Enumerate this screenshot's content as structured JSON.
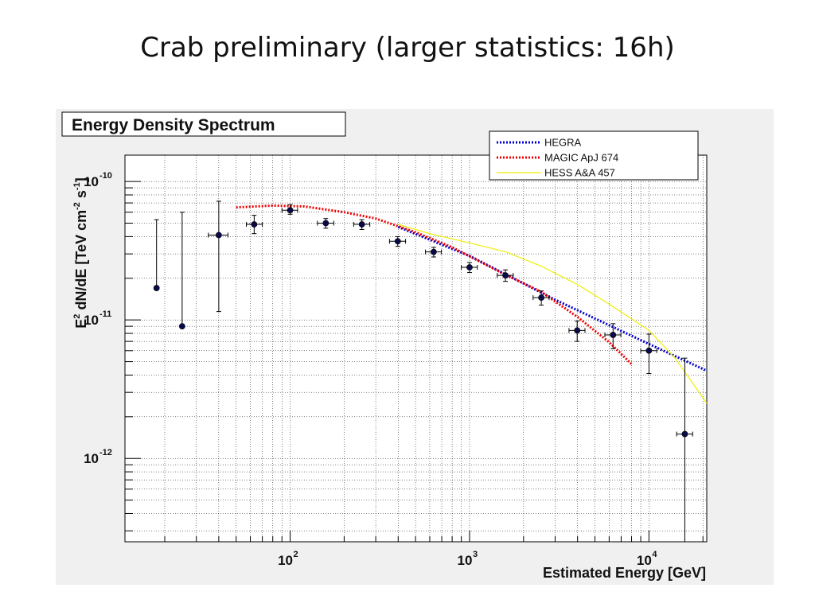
{
  "slide": {
    "title": "Crab preliminary (larger statistics: 16h)"
  },
  "chart_data": {
    "type": "scatter",
    "title": "Energy Density Spectrum",
    "xlabel": "Estimated Energy [GeV]",
    "ylabel_parts": [
      "E",
      "2",
      " dN/dE [TeV cm",
      "-2",
      " s",
      "-1",
      "]"
    ],
    "x_scale": "log",
    "y_scale": "log",
    "xlim": [
      12,
      21000
    ],
    "ylim": [
      2.5e-13,
      1.55e-10
    ],
    "grid": true,
    "legend_position": "top-right",
    "x_ticks": [
      {
        "value": 100,
        "base": "10",
        "exp": "2"
      },
      {
        "value": 1000,
        "base": "10",
        "exp": "3"
      },
      {
        "value": 10000,
        "base": "10",
        "exp": "4"
      }
    ],
    "y_ticks": [
      {
        "value": 1e-10,
        "base": "10",
        "exp": "-10"
      },
      {
        "value": 1e-11,
        "base": "10",
        "exp": "-11"
      },
      {
        "value": 1e-12,
        "base": "10",
        "exp": "-12"
      }
    ],
    "points": [
      {
        "x": 18,
        "y": 1.7e-11,
        "xerr": [
          0,
          0
        ],
        "yerr": [
          1.7e-11,
          5.3e-11
        ]
      },
      {
        "x": 25,
        "y": 9e-12,
        "xerr": [
          0,
          0
        ],
        "yerr": [
          9e-12,
          6e-11
        ]
      },
      {
        "x": 40,
        "y": 4.1e-11,
        "xerr": [
          35,
          45
        ],
        "yerr": [
          1.15e-11,
          7.2e-11
        ]
      },
      {
        "x": 63,
        "y": 4.9e-11,
        "xerr": [
          57,
          70
        ],
        "yerr": [
          4.2e-11,
          5.7e-11
        ]
      },
      {
        "x": 100,
        "y": 6.2e-11,
        "xerr": [
          90,
          110
        ],
        "yerr": [
          5.8e-11,
          6.8e-11
        ]
      },
      {
        "x": 158,
        "y": 5e-11,
        "xerr": [
          142,
          175
        ],
        "yerr": [
          4.6e-11,
          5.4e-11
        ]
      },
      {
        "x": 251,
        "y": 4.9e-11,
        "xerr": [
          226,
          278
        ],
        "yerr": [
          4.5e-11,
          5.3e-11
        ]
      },
      {
        "x": 398,
        "y": 3.7e-11,
        "xerr": [
          358,
          440
        ],
        "yerr": [
          3.4e-11,
          4e-11
        ]
      },
      {
        "x": 631,
        "y": 3.1e-11,
        "xerr": [
          568,
          697
        ],
        "yerr": [
          2.85e-11,
          3.35e-11
        ]
      },
      {
        "x": 1000,
        "y": 2.4e-11,
        "xerr": [
          900,
          1105
        ],
        "yerr": [
          2.2e-11,
          2.6e-11
        ]
      },
      {
        "x": 1585,
        "y": 2.1e-11,
        "xerr": [
          1426,
          1752
        ],
        "yerr": [
          1.9e-11,
          2.3e-11
        ]
      },
      {
        "x": 2512,
        "y": 1.45e-11,
        "xerr": [
          2260,
          2776
        ],
        "yerr": [
          1.28e-11,
          1.62e-11
        ]
      },
      {
        "x": 3981,
        "y": 8.4e-12,
        "xerr": [
          3583,
          4400
        ],
        "yerr": [
          7e-12,
          9.8e-12
        ]
      },
      {
        "x": 6310,
        "y": 7.8e-12,
        "xerr": [
          5679,
          6974
        ],
        "yerr": [
          6.2e-12,
          9.4e-12
        ]
      },
      {
        "x": 10000,
        "y": 6e-12,
        "xerr": [
          9000,
          11052
        ],
        "yerr": [
          4.1e-12,
          7.9e-12
        ]
      },
      {
        "x": 15849,
        "y": 1.5e-12,
        "xerr": [
          14264,
          17517
        ],
        "yerr": [
          0,
          5.3e-12
        ]
      }
    ],
    "series": [
      {
        "name": "HEGRA",
        "color": "#0000cc",
        "style": "dotted",
        "x": [
          400,
          1000,
          3000,
          10000,
          21000
        ],
        "y": [
          4.7e-11,
          2.9e-11,
          1.4e-11,
          6.7e-12,
          4.3e-12
        ]
      },
      {
        "name": "MAGIC ApJ 674",
        "color": "#ee0000",
        "style": "dotted",
        "x": [
          50,
          80,
          120,
          200,
          300,
          500,
          800,
          1500,
          2500,
          4000,
          6000,
          8000
        ],
        "y": [
          6.5e-11,
          6.7e-11,
          6.6e-11,
          6e-11,
          5.4e-11,
          4.3e-11,
          3.35e-11,
          2.2e-11,
          1.6e-11,
          1.05e-11,
          6.9e-12,
          4.8e-12
        ]
      },
      {
        "name": "HESS A&A 457",
        "color": "#eeee00",
        "style": "solid",
        "x": [
          400,
          600,
          1000,
          1600,
          2500,
          4000,
          6000,
          10000,
          14000,
          21000
        ],
        "y": [
          4.9e-11,
          4.2e-11,
          3.6e-11,
          3.1e-11,
          2.45e-11,
          1.8e-11,
          1.3e-11,
          8.4e-12,
          5.3e-12,
          2.5e-12
        ]
      }
    ]
  }
}
